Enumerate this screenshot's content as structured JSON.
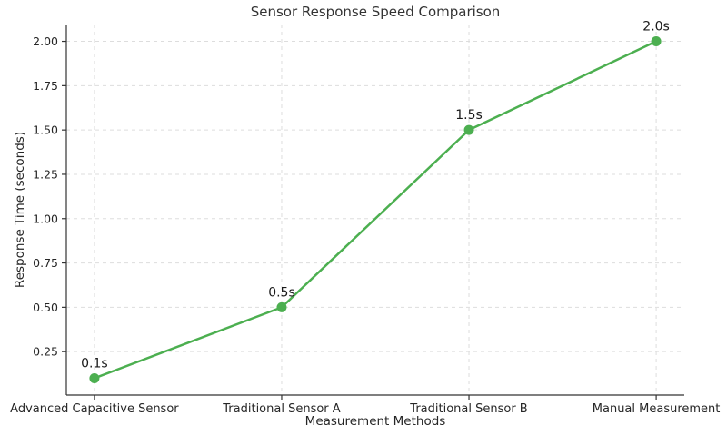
{
  "chart_data": {
    "type": "line",
    "title": "Sensor Response Speed Comparison",
    "xlabel": "Measurement Methods",
    "ylabel": "Response Time (seconds)",
    "categories": [
      "Advanced Capacitive Sensor",
      "Traditional Sensor A",
      "Traditional Sensor B",
      "Manual Measurement"
    ],
    "values": [
      0.1,
      0.5,
      1.5,
      2.0
    ],
    "point_labels": [
      "0.1s",
      "0.5s",
      "1.5s",
      "2.0s"
    ],
    "yticks": [
      0.25,
      0.5,
      0.75,
      1.0,
      1.25,
      1.5,
      1.75,
      2.0
    ],
    "ytick_labels": [
      "0.25",
      "0.50",
      "0.75",
      "1.00",
      "1.25",
      "1.50",
      "1.75",
      "2.00"
    ],
    "ylim": [
      0.005,
      2.095
    ],
    "grid": true,
    "grid_style": "dashed",
    "legend": "none",
    "line_color": "#4CAF50",
    "grid_color": "#dddddd",
    "axis_color": "#333333",
    "text_color": "#262626",
    "background_color": "#ffffff"
  }
}
